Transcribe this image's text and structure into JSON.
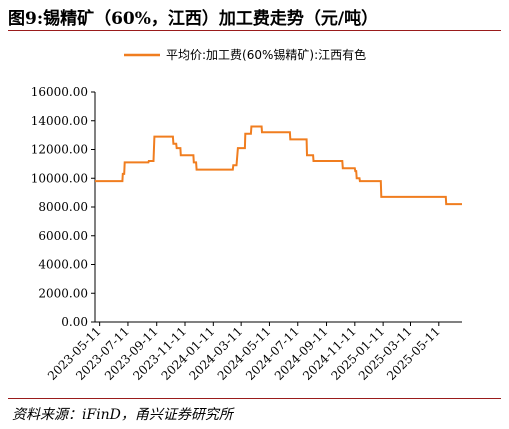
{
  "figure": {
    "title": "图9:锡精矿（60%，江西）加工费走势（元/吨）",
    "source": "资料来源：iFinD，甬兴证券研究所"
  },
  "colors": {
    "series": "#f07d1f",
    "rule": "#9a1b1b",
    "axis": "#000000"
  },
  "chart_data": {
    "type": "line",
    "title": "",
    "xlabel": "",
    "ylabel": "",
    "ylim": [
      0,
      16000
    ],
    "yticks": [
      "0.00",
      "2000.00",
      "4000.00",
      "6000.00",
      "8000.00",
      "10000.00",
      "12000.00",
      "14000.00",
      "16000.00"
    ],
    "xlim": [
      "2023-05-01",
      "2025-06-30"
    ],
    "xticks": [
      "2023-05-11",
      "2023-07-11",
      "2023-09-11",
      "2023-11-11",
      "2024-01-11",
      "2024-03-11",
      "2024-05-11",
      "2024-07-11",
      "2024-09-11",
      "2024-11-11",
      "2025-01-11",
      "2025-03-11",
      "2025-05-11"
    ],
    "grid": false,
    "legend_position": "top-center",
    "series": [
      {
        "name": "平均价:加工费(60%锡精矿):江西有色",
        "x": [
          "2023-05-01",
          "2023-06-29",
          "2023-06-30",
          "2023-07-03",
          "2023-07-04",
          "2023-08-24",
          "2023-08-25",
          "2023-09-04",
          "2023-09-06",
          "2023-10-16",
          "2023-10-17",
          "2023-10-23",
          "2023-10-24",
          "2023-11-01",
          "2023-11-02",
          "2023-11-29",
          "2023-11-30",
          "2023-12-05",
          "2023-12-06",
          "2024-02-22",
          "2024-02-23",
          "2024-03-01",
          "2024-03-04",
          "2024-03-19",
          "2024-03-20",
          "2024-04-01",
          "2024-04-02",
          "2024-04-24",
          "2024-04-25",
          "2024-06-24",
          "2024-06-25",
          "2024-07-30",
          "2024-07-31",
          "2024-08-13",
          "2024-08-14",
          "2024-10-15",
          "2024-10-16",
          "2024-11-11",
          "2024-11-12",
          "2024-11-14",
          "2024-11-15",
          "2024-11-21",
          "2024-11-22",
          "2025-01-06",
          "2025-01-07",
          "2025-05-26",
          "2025-05-27",
          "2025-06-30"
        ],
        "y": [
          9800,
          9800,
          10300,
          10300,
          11100,
          11100,
          11200,
          11200,
          12900,
          12900,
          12400,
          12400,
          12100,
          12100,
          11600,
          11600,
          11100,
          11100,
          10600,
          10600,
          10900,
          10900,
          12100,
          12100,
          13100,
          13100,
          13600,
          13600,
          13200,
          13200,
          12700,
          12700,
          11600,
          11600,
          11200,
          11200,
          10700,
          10700,
          10500,
          10500,
          10000,
          10000,
          9800,
          9800,
          8700,
          8700,
          8200,
          8200
        ]
      }
    ]
  }
}
